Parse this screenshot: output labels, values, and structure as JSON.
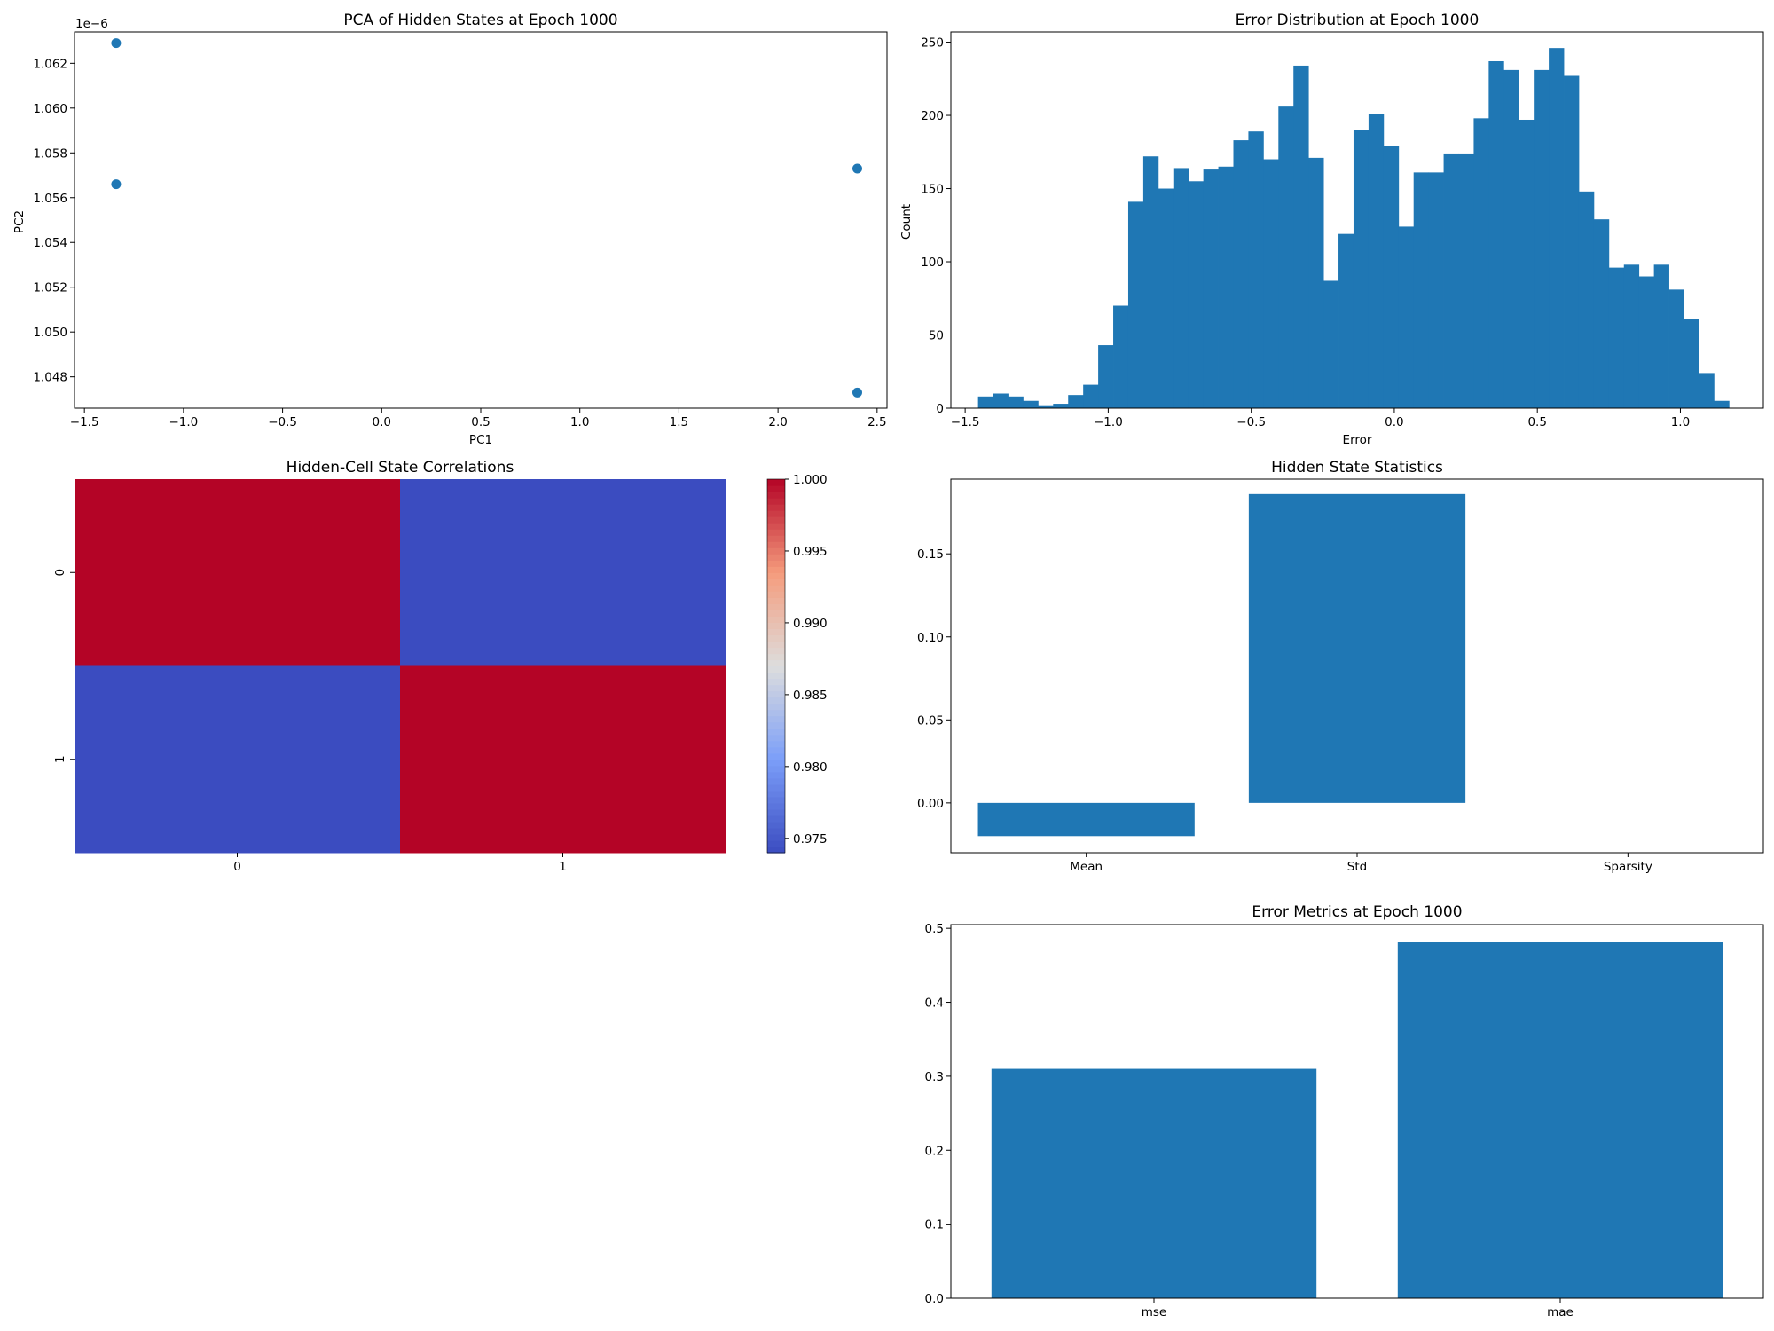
{
  "colors": {
    "bar": "#1f77b4",
    "heat_high": "#b40426",
    "heat_low": "#3b4cc0",
    "axis": "#000000",
    "background": "#ffffff"
  },
  "chart_data": [
    {
      "id": "pca",
      "type": "scatter",
      "title": "PCA of Hidden States at Epoch 1000",
      "xlabel": "PC1",
      "ylabel": "PC2",
      "y_offset_label": "1e−6",
      "xlim": [
        -1.55,
        2.55
      ],
      "ylim": [
        1.0466,
        1.0634
      ],
      "xticks": [
        -1.5,
        -1.0,
        -0.5,
        0.0,
        0.5,
        1.0,
        1.5,
        2.0,
        2.5
      ],
      "xtick_labels": [
        "−1.5",
        "−1.0",
        "−0.5",
        "0.0",
        "0.5",
        "1.0",
        "1.5",
        "2.0",
        "2.5"
      ],
      "yticks": [
        1.048,
        1.05,
        1.052,
        1.054,
        1.056,
        1.058,
        1.06,
        1.062
      ],
      "ytick_labels": [
        "1.048",
        "1.050",
        "1.052",
        "1.054",
        "1.056",
        "1.058",
        "1.060",
        "1.062"
      ],
      "points": [
        {
          "x": -1.34,
          "y": 1.0629
        },
        {
          "x": -1.34,
          "y": 1.0566
        },
        {
          "x": 2.4,
          "y": 1.0573
        },
        {
          "x": 2.4,
          "y": 1.0473
        }
      ]
    },
    {
      "id": "errhist",
      "type": "bar",
      "subtype": "histogram",
      "title": "Error Distribution at Epoch 1000",
      "xlabel": "Error",
      "ylabel": "Count",
      "xlim": [
        -1.55,
        1.29
      ],
      "ylim": [
        0,
        257
      ],
      "bin_start": -1.455,
      "bin_width": 0.0525,
      "xticks": [
        -1.5,
        -1.0,
        -0.5,
        0.0,
        0.5,
        1.0
      ],
      "xtick_labels": [
        "−1.5",
        "−1.0",
        "−0.5",
        "0.0",
        "0.5",
        "1.0"
      ],
      "yticks": [
        0,
        50,
        100,
        150,
        200,
        250
      ],
      "ytick_labels": [
        "0",
        "50",
        "100",
        "150",
        "200",
        "250"
      ],
      "values": [
        8,
        10,
        8,
        5,
        2,
        3,
        9,
        16,
        43,
        70,
        141,
        172,
        150,
        164,
        155,
        163,
        165,
        183,
        189,
        170,
        206,
        234,
        171,
        87,
        119,
        190,
        201,
        179,
        124,
        161,
        161,
        174,
        174,
        198,
        237,
        231,
        197,
        231,
        246,
        227,
        148,
        129,
        96,
        98,
        90,
        98,
        81,
        61,
        24,
        5
      ]
    },
    {
      "id": "corr",
      "type": "heatmap",
      "title": "Hidden-Cell State Correlations",
      "x_labels": [
        "0",
        "1"
      ],
      "y_labels": [
        "0",
        "1"
      ],
      "values": [
        [
          1.0,
          0.974
        ],
        [
          0.974,
          1.0
        ]
      ],
      "colorbar": {
        "min": 0.974,
        "max": 1.0,
        "colormap": "coolwarm",
        "ticks": [
          0.975,
          0.98,
          0.985,
          0.99,
          0.995,
          1.0
        ],
        "tick_labels": [
          "0.975",
          "0.980",
          "0.985",
          "0.990",
          "0.995",
          "1.000"
        ]
      }
    },
    {
      "id": "hstats",
      "type": "bar",
      "title": "Hidden State Statistics",
      "categories": [
        "Mean",
        "Std",
        "Sparsity"
      ],
      "values": [
        -0.02,
        0.186,
        0.0
      ],
      "ylim": [
        -0.03,
        0.195
      ],
      "yticks": [
        0.0,
        0.05,
        0.1,
        0.15
      ],
      "ytick_labels": [
        "0.00",
        "0.05",
        "0.10",
        "0.15"
      ]
    },
    {
      "id": "errmetrics",
      "type": "bar",
      "title": "Error Metrics at Epoch 1000",
      "categories": [
        "mse",
        "mae"
      ],
      "values": [
        0.31,
        0.481
      ],
      "ylim": [
        0,
        0.505
      ],
      "yticks": [
        0.0,
        0.1,
        0.2,
        0.3,
        0.4,
        0.5
      ],
      "ytick_labels": [
        "0.0",
        "0.1",
        "0.2",
        "0.3",
        "0.4",
        "0.5"
      ]
    }
  ]
}
